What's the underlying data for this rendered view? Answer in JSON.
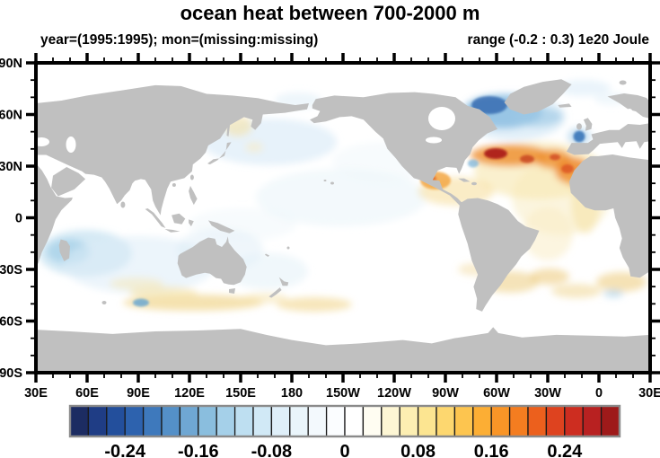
{
  "title": "ocean heat between 700-2000 m",
  "subtitle_left": "year=(1995:1995); mon=(missing:missing)",
  "subtitle_right": "range (-0.2 : 0.3) 1e20 Joule",
  "chart_data": {
    "type": "heatmap",
    "projection": "equirectangular world map, Pacific-centered, longitudes 30E eastward around to 30E",
    "variable": "ocean heat content anomaly, 700-2000 m depth",
    "units": "1e20 Joule",
    "stated_range": [
      -0.2,
      0.3
    ],
    "x_ticks": [
      "30E",
      "60E",
      "90E",
      "120E",
      "150E",
      "180",
      "150W",
      "120W",
      "90W",
      "60W",
      "30W",
      "0",
      "30E"
    ],
    "y_ticks": [
      "90N",
      "60N",
      "30N",
      "0",
      "30S",
      "60S",
      "90S"
    ],
    "grid": "minor ticks every 10 degrees, major every 30 degrees, ticks on all four sides",
    "land_color": "#c0c0c0",
    "ocean_color": "#ffffff",
    "colorbar": {
      "levels_min": -0.3,
      "levels_max": 0.3,
      "step": 0.02,
      "labels": [
        "-0.24",
        "-0.16",
        "-0.08",
        "0",
        "0.08",
        "0.16",
        "0.24"
      ],
      "label_values": [
        -0.24,
        -0.16,
        -0.08,
        0,
        0.08,
        0.16,
        0.24
      ],
      "colors": [
        "#1c2c62",
        "#1f3d85",
        "#234f9c",
        "#2d62ae",
        "#3e79bc",
        "#5490c8",
        "#6fa7d3",
        "#8abede",
        "#a5d0e9",
        "#bedff1",
        "#d1e9f6",
        "#dfeff9",
        "#eaf5fb",
        "#f3f9fd",
        "#fbfdff",
        "#ffffff",
        "#fffdf2",
        "#fdf6d4",
        "#fceeb2",
        "#fce591",
        "#fdd76f",
        "#fdc54f",
        "#fcae34",
        "#f99527",
        "#f47d20",
        "#ec601d",
        "#de431f",
        "#cd2d20",
        "#b82121",
        "#9e1a1a"
      ]
    },
    "notable_anomalies": [
      {
        "region": "Subpolar North Atlantic / Labrador Sea south of Greenland",
        "lat": "50-60N",
        "lon": "60W-25W",
        "sign": "negative",
        "approx_value_1e20_J": -0.2
      },
      {
        "region": "Gulf Stream extension / subtropical North Atlantic band",
        "lat": "30-40N",
        "lon": "70W-15W",
        "sign": "positive",
        "approx_value_1e20_J": 0.3
      },
      {
        "region": "Bay of Biscay spot west of France",
        "lat": "~45N",
        "lon": "~10W",
        "sign": "negative",
        "approx_value_1e20_J": -0.16
      },
      {
        "region": "Orange cell west of Morocco / Canaries",
        "lat": "30-35N",
        "lon": "~15W",
        "sign": "positive",
        "approx_value_1e20_J": 0.2
      },
      {
        "region": "Gulf of Mexico",
        "lat": "~25N",
        "lon": "~90W",
        "sign": "positive",
        "approx_value_1e20_J": 0.12
      },
      {
        "region": "Caribbean and tropical Atlantic",
        "lat": "0-20N",
        "lon": "90W-20W",
        "sign": "weak positive",
        "approx_value_1e20_J": 0.04
      },
      {
        "region": "Southwest Indian Ocean around Madagascar",
        "lat": "20-40S",
        "lon": "35-60E",
        "sign": "weak negative",
        "approx_value_1e20_J": -0.06
      },
      {
        "region": "Southern Ocean streaks",
        "lat": "45-60S",
        "lon": "60E-180 and 30W-20E",
        "sign": "weak positive",
        "approx_value_1e20_J": 0.06
      },
      {
        "region": "North and central Pacific",
        "lat": "0-50N",
        "sign": "very weak negative",
        "approx_value_1e20_J": -0.02
      },
      {
        "region": "Most remaining ocean",
        "sign": "near zero",
        "approx_value_1e20_J": 0
      }
    ],
    "anomaly_blobs": [
      [
        260,
        88,
        75,
        26,
        "#d3e8f5",
        0.55,
        1
      ],
      [
        225,
        70,
        16,
        12,
        "#f6e0a0",
        0.55,
        1
      ],
      [
        243,
        94,
        10,
        6,
        "#f9ecc0",
        0.5,
        1
      ],
      [
        292,
        42,
        26,
        9,
        "#dcedf7",
        0.5,
        1
      ],
      [
        340,
        150,
        95,
        32,
        "#e7f3fa",
        0.5,
        1
      ],
      [
        390,
        110,
        60,
        22,
        "#eef6fb",
        0.45,
        1
      ],
      [
        55,
        212,
        52,
        26,
        "#b9dcef",
        0.6,
        1
      ],
      [
        36,
        210,
        24,
        14,
        "#93c6e4",
        0.55,
        1
      ],
      [
        115,
        225,
        85,
        32,
        "#dcedf7",
        0.55,
        1
      ],
      [
        205,
        208,
        48,
        24,
        "#dcecf6",
        0.45,
        1
      ],
      [
        258,
        232,
        45,
        20,
        "#e2f0f8",
        0.5,
        1
      ],
      [
        230,
        180,
        60,
        18,
        "#eaf4fa",
        0.4,
        1
      ],
      [
        175,
        267,
        78,
        9,
        "#f1d58e",
        0.7,
        1
      ],
      [
        142,
        256,
        38,
        7,
        "#f5e2a8",
        0.6,
        1
      ],
      [
        112,
        246,
        30,
        7,
        "#f7e7b4",
        0.5,
        1
      ],
      [
        310,
        269,
        42,
        8,
        "#f1d58e",
        0.6,
        1
      ],
      [
        255,
        262,
        25,
        6,
        "#f5e2a8",
        0.5,
        1
      ],
      [
        117,
        267,
        9,
        4.5,
        "#58a0d4",
        0.75,
        0
      ],
      [
        528,
        244,
        32,
        12,
        "#efd08b",
        0.6,
        1
      ],
      [
        572,
        238,
        22,
        9,
        "#ecc878",
        0.55,
        1
      ],
      [
        602,
        254,
        28,
        8,
        "#f1d795",
        0.55,
        1
      ],
      [
        652,
        244,
        28,
        11,
        "#efce84",
        0.6,
        1
      ],
      [
        643,
        257,
        11,
        4.5,
        "#a8d0e9",
        0.6,
        1
      ],
      [
        490,
        230,
        20,
        7,
        "#f3dca2",
        0.5,
        1
      ],
      [
        585,
        150,
        55,
        42,
        "#f9efca",
        0.6,
        1
      ],
      [
        570,
        190,
        28,
        30,
        "#f9ecc2",
        0.5,
        1
      ],
      [
        612,
        158,
        16,
        32,
        "#f6e3a6",
        0.6,
        1
      ],
      [
        560,
        120,
        72,
        32,
        "#f7e8b4",
        0.65,
        1
      ],
      [
        468,
        143,
        42,
        16,
        "#f6e0a0",
        0.6,
        1
      ],
      [
        445,
        131,
        17,
        10,
        "#f2a33c",
        0.8,
        0
      ],
      [
        439,
        129,
        7,
        4,
        "#e0571d",
        0.7,
        0
      ],
      [
        528,
        103,
        44,
        12,
        "#ee8c2a",
        0.8,
        1
      ],
      [
        512,
        101,
        13,
        6,
        "#a81b17",
        0.9,
        0
      ],
      [
        547,
        107,
        8,
        4.5,
        "#c33a1d",
        0.75,
        0
      ],
      [
        576,
        107,
        20,
        11,
        "#ef9130",
        0.8,
        1
      ],
      [
        578,
        105,
        6,
        3.5,
        "#cc3b1c",
        0.7,
        0
      ],
      [
        598,
        120,
        20,
        15,
        "#ee8526",
        0.8,
        1
      ],
      [
        592,
        118,
        7,
        5,
        "#d8481e",
        0.7,
        0
      ],
      [
        604,
        131,
        14,
        7,
        "#f2ab45",
        0.6,
        1
      ],
      [
        520,
        54,
        44,
        19,
        "#64a6d6",
        0.85,
        1
      ],
      [
        505,
        47,
        20,
        10,
        "#2e66ae",
        0.8,
        0
      ],
      [
        558,
        60,
        28,
        11,
        "#85bade",
        0.65,
        1
      ],
      [
        532,
        60,
        58,
        26,
        "#bcdcf0",
        0.45,
        1
      ],
      [
        605,
        82,
        13,
        10,
        "#93c4e5",
        0.5,
        1
      ],
      [
        605,
        82,
        6.5,
        6.5,
        "#2f6fb5",
        0.85,
        0
      ],
      [
        487,
        112,
        6,
        4.5,
        "#7cb5db",
        0.75,
        0
      ],
      [
        610,
        28,
        30,
        9,
        "#d8ebf7",
        0.55,
        1
      ],
      [
        640,
        40,
        18,
        7,
        "#e2f0f9",
        0.5,
        1
      ]
    ]
  }
}
